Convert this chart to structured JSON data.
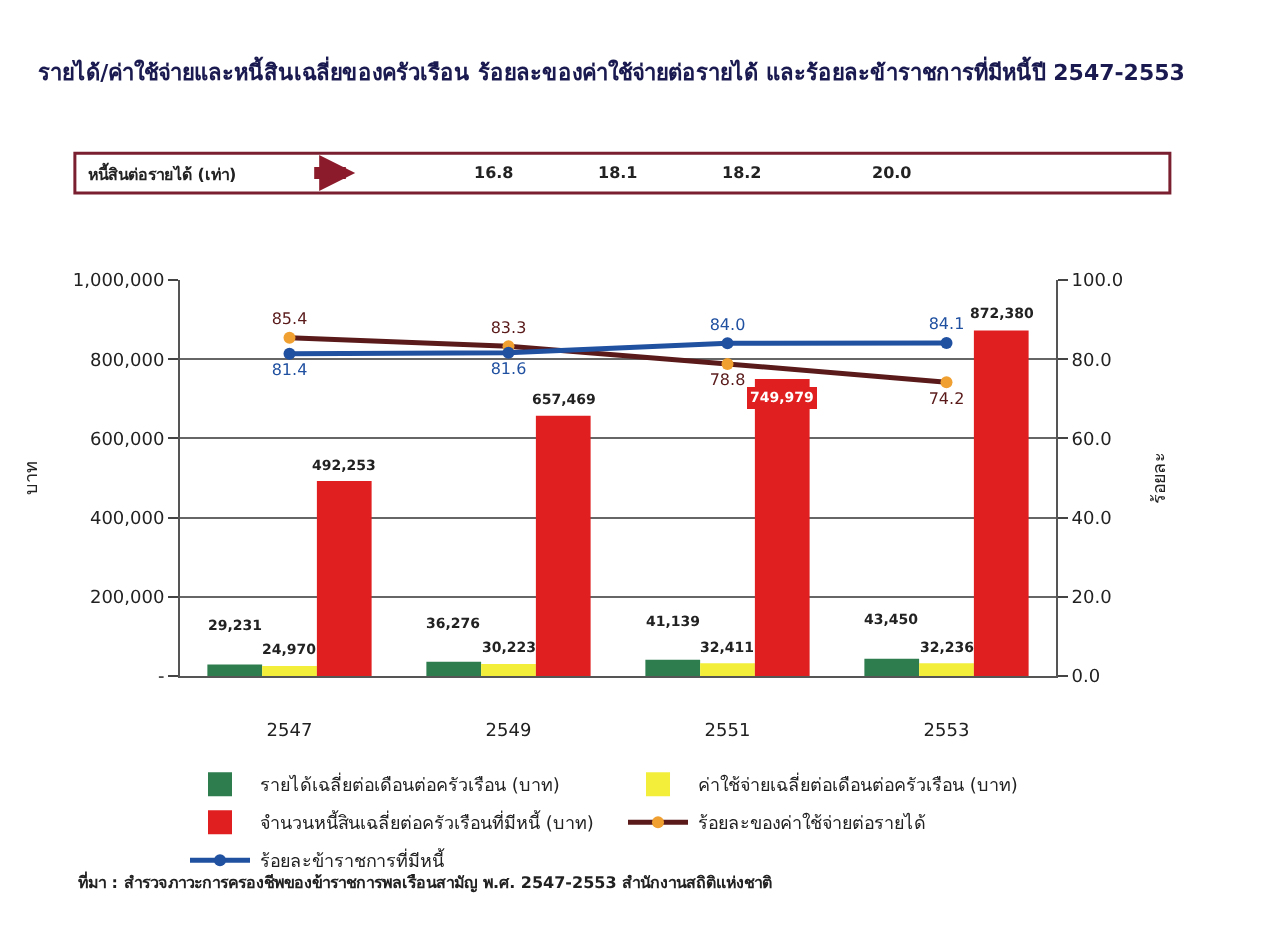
{
  "chart_data": {
    "type": "bar",
    "title": "รายได้/ค่าใช้จ่ายและหนี้สินเฉลี่ยของครัวเรือน ร้อยละของค่าใช้จ่ายต่อรายได้ และร้อยละข้าราชการที่มีหนี้ปี 2547-2553",
    "ylabel": "บาท",
    "y2label": "ร้อยละ",
    "categories": [
      "2547",
      "2549",
      "2551",
      "2553"
    ],
    "series": [
      {
        "name": "รายได้เฉลี่ยต่อเดือนต่อครัวเรือน (บาท)",
        "color": "#2e7d4f",
        "values": [
          29231,
          36276,
          41139,
          43450
        ],
        "value_labels": [
          "29,231",
          "36,276",
          "41,139",
          "43,450"
        ]
      },
      {
        "name": "ค่าใช้จ่ายเฉลี่ยต่อเดือนต่อครัวเรือน (บาท)",
        "color": "#f2ee3a",
        "values": [
          24970,
          30223,
          32411,
          32236
        ],
        "value_labels": [
          "24,970",
          "30,223",
          "32,411",
          "32,236"
        ]
      },
      {
        "name": "จำนวนหนี้สินเฉลี่ยต่อครัวเรือนที่มีหนี้ (บาท)",
        "color": "#e02020",
        "values": [
          492253,
          657469,
          749979,
          872380
        ],
        "value_labels": [
          "492,253",
          "657,469",
          "749,979",
          "872,380"
        ]
      },
      {
        "name": "ร้อยละของค่าใช้จ่ายต่อรายได้",
        "type": "line",
        "axis": "y2",
        "color": "#5a1a1a",
        "marker": "circle",
        "values": [
          85.4,
          83.3,
          78.8,
          74.2
        ],
        "value_labels": [
          "85.4",
          "83.3",
          "78.8",
          "74.2"
        ]
      },
      {
        "name": "ร้อยละข้าราชการที่มีหนี้",
        "type": "line",
        "axis": "y2",
        "color": "#2050a0",
        "marker": "circle",
        "values": [
          81.4,
          81.6,
          84.0,
          84.1
        ],
        "value_labels": [
          "81.4",
          "81.6",
          "84.0",
          "84.1"
        ]
      }
    ],
    "ylim": [
      0,
      1000000
    ],
    "yticks": [
      {
        "value": 0,
        "label": "-"
      },
      {
        "value": 200000,
        "label": "200,000"
      },
      {
        "value": 400000,
        "label": "400,000"
      },
      {
        "value": 600000,
        "label": "600,000"
      },
      {
        "value": 800000,
        "label": "800,000"
      },
      {
        "value": 1000000,
        "label": "1,000,000"
      }
    ],
    "y2lim": [
      0,
      100
    ],
    "y2ticks": [
      {
        "value": 0,
        "label": "0.0"
      },
      {
        "value": 20,
        "label": "20.0"
      },
      {
        "value": 40,
        "label": "40.0"
      },
      {
        "value": 60,
        "label": "60.0"
      },
      {
        "value": 80,
        "label": "80.0"
      },
      {
        "value": 100,
        "label": "100.0"
      }
    ],
    "grid": "y",
    "legend": "bottom",
    "annotations": [
      "หนี้สินต่อรายได้ (เท่า)",
      "16.8",
      "18.1",
      "18.2",
      "20.0",
      "ที่มา : สำรวจภาวะการครองชีพของข้าราชการพลเรือนสามัญ พ.ศ. 2547-2553 สำนักงานสถิติแห่งชาติ"
    ]
  }
}
